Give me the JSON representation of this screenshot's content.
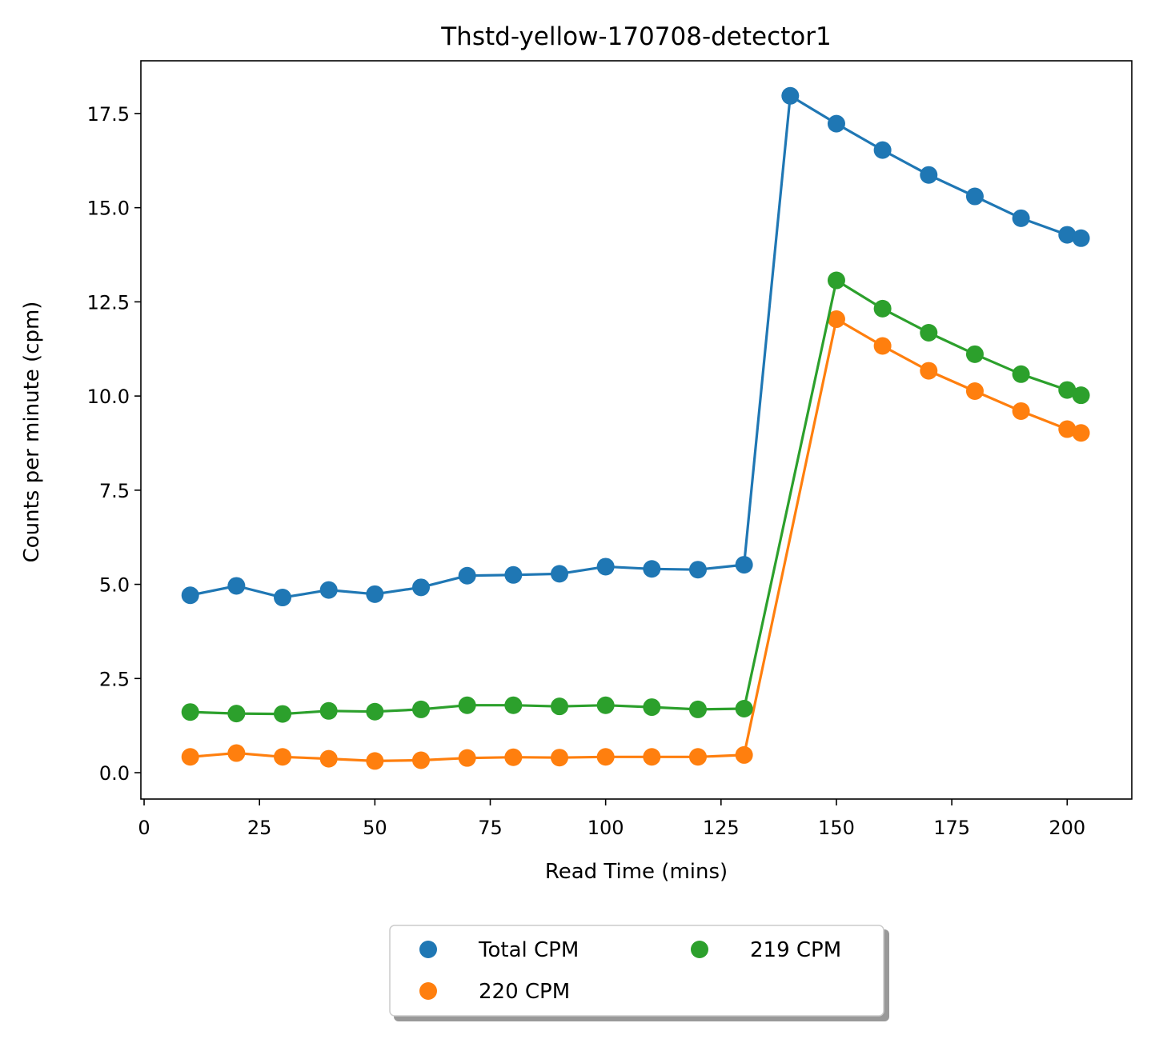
{
  "chart_data": {
    "type": "line",
    "title": "Thstd-yellow-170708-detector1",
    "xlabel": "Read Time (mins)",
    "ylabel": "Counts per minute (cpm)",
    "xlim": [
      -0.7,
      214.0
    ],
    "ylim": [
      -0.7,
      18.9
    ],
    "x_ticks": [
      0,
      25,
      50,
      75,
      100,
      125,
      150,
      175,
      200
    ],
    "y_ticks": [
      0.0,
      2.5,
      5.0,
      7.5,
      10.0,
      12.5,
      15.0,
      17.5
    ],
    "x_tick_labels": [
      "0",
      "25",
      "50",
      "75",
      "100",
      "125",
      "150",
      "175",
      "200"
    ],
    "y_tick_labels": [
      "0.0",
      "2.5",
      "5.0",
      "7.5",
      "10.0",
      "12.5",
      "15.0",
      "17.5"
    ],
    "grid": false,
    "legend_position": "bottom-center, below axes",
    "series": [
      {
        "name": "Total CPM",
        "color": "#1f77b4",
        "x": [
          10,
          20,
          30,
          40,
          50,
          60,
          70,
          80,
          90,
          100,
          110,
          120,
          130,
          140,
          150,
          160,
          170,
          180,
          190,
          200,
          203
        ],
        "y": [
          4.71,
          4.96,
          4.65,
          4.85,
          4.74,
          4.92,
          5.23,
          5.25,
          5.28,
          5.47,
          5.41,
          5.39,
          5.52,
          17.97,
          17.23,
          16.53,
          15.87,
          15.3,
          14.72,
          14.28,
          14.19
        ]
      },
      {
        "name": "220 CPM",
        "color": "#ff7f0e",
        "x": [
          10,
          20,
          30,
          40,
          50,
          60,
          70,
          80,
          90,
          100,
          110,
          120,
          130,
          150,
          160,
          170,
          180,
          190,
          200,
          203
        ],
        "y": [
          0.42,
          0.52,
          0.42,
          0.37,
          0.31,
          0.33,
          0.39,
          0.41,
          0.4,
          0.42,
          0.42,
          0.42,
          0.47,
          12.04,
          11.33,
          10.67,
          10.13,
          9.6,
          9.12,
          9.02
        ]
      },
      {
        "name": "219 CPM",
        "color": "#2ca02c",
        "x": [
          10,
          20,
          30,
          40,
          50,
          60,
          70,
          80,
          90,
          100,
          110,
          120,
          130,
          150,
          160,
          170,
          180,
          190,
          200,
          203
        ],
        "y": [
          1.61,
          1.57,
          1.56,
          1.64,
          1.62,
          1.68,
          1.79,
          1.79,
          1.76,
          1.79,
          1.74,
          1.68,
          1.7,
          13.07,
          12.32,
          11.68,
          11.11,
          10.58,
          10.16,
          10.02
        ]
      }
    ],
    "legend": {
      "columns": [
        [
          "Total CPM",
          "220 CPM"
        ],
        [
          "219 CPM"
        ]
      ]
    }
  }
}
